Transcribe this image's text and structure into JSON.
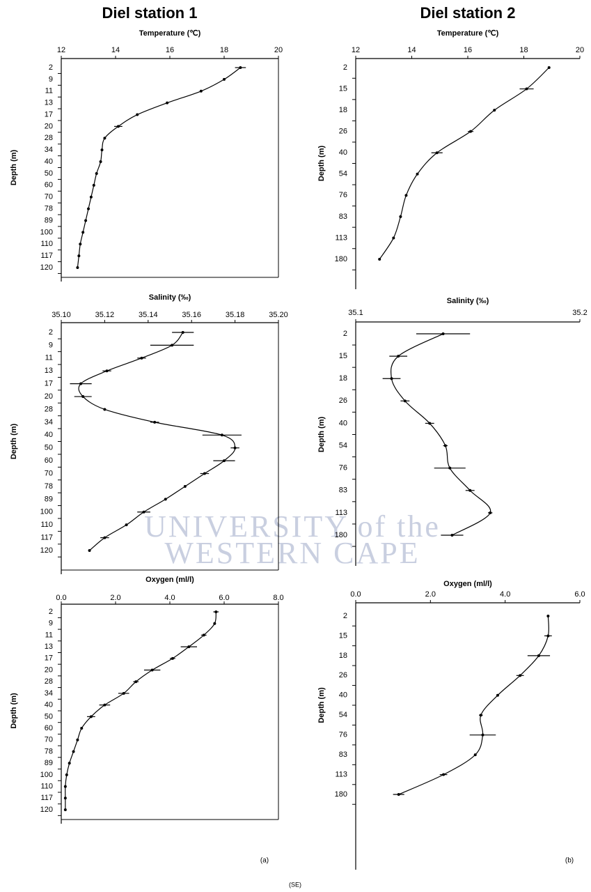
{
  "header": {
    "station_1": "Diel station 1",
    "station_2": "Diel station 2"
  },
  "panel_labels": [
    "(a)",
    "(b)"
  ],
  "note": "(SE)",
  "watermark": [
    "UNIVERSITY of the",
    "WESTERN CAPE"
  ],
  "chart_data": [
    {
      "type": "profile",
      "x_label": "Temperature (℃)",
      "y_label": "Depth (m)",
      "color": "#000000",
      "frame": true,
      "categories": [
        "2",
        "9",
        "11",
        "13",
        "17",
        "20",
        "28",
        "34",
        "40",
        "50",
        "60",
        "70",
        "78",
        "89",
        "100",
        "110",
        "117",
        "120"
      ],
      "values": [
        18.6,
        18.0,
        17.15,
        15.9,
        14.8,
        14.1,
        13.6,
        13.5,
        13.45,
        13.3,
        13.2,
        13.1,
        13.0,
        12.9,
        12.8,
        12.7,
        12.65,
        12.6
      ],
      "errors": [
        0.2,
        null,
        null,
        null,
        null,
        0.15,
        null,
        null,
        null,
        null,
        null,
        null,
        null,
        null,
        null,
        null,
        null,
        null
      ],
      "xlim": [
        12,
        20
      ],
      "xticks": [
        12,
        14,
        16,
        18,
        20
      ]
    },
    {
      "type": "profile",
      "x_label": "Temperature (℃)",
      "y_label": "Depth (m)",
      "color": "#000000",
      "frame": false,
      "categories": [
        "2",
        "15",
        "18",
        "26",
        "40",
        "54",
        "76",
        "83",
        "113",
        "180"
      ],
      "values": [
        18.9,
        18.1,
        16.95,
        16.1,
        14.9,
        14.2,
        13.8,
        13.6,
        13.35,
        12.85
      ],
      "errors": [
        null,
        0.25,
        null,
        0.1,
        0.2,
        null,
        null,
        null,
        null,
        null
      ],
      "xlim": [
        12,
        20
      ],
      "xticks": [
        12,
        14,
        16,
        18,
        20
      ]
    },
    {
      "type": "profile",
      "x_label": "Salinity (‰)",
      "y_label": "Depth (m)",
      "color": "#000000",
      "frame": true,
      "categories": [
        "2",
        "9",
        "11",
        "13",
        "17",
        "20",
        "28",
        "34",
        "40",
        "50",
        "60",
        "70",
        "78",
        "89",
        "100",
        "110",
        "117",
        "120"
      ],
      "values": [
        35.156,
        35.151,
        35.137,
        35.121,
        35.109,
        35.11,
        35.12,
        35.143,
        35.174,
        35.18,
        35.175,
        35.166,
        35.157,
        35.148,
        35.138,
        35.13,
        35.12,
        35.113
      ],
      "errors": [
        0.005,
        0.01,
        0.002,
        0.002,
        0.005,
        0.004,
        null,
        0.002,
        0.009,
        0.002,
        0.005,
        0.002,
        null,
        null,
        0.003,
        null,
        0.002,
        null
      ],
      "xlim": [
        35.1,
        35.2
      ],
      "xticks": [
        {
          "value": 35.1,
          "label": "35.10"
        },
        {
          "value": 35.12,
          "label": "35.12"
        },
        {
          "value": 35.14,
          "label": "35.14"
        },
        {
          "value": 35.16,
          "label": "35.16"
        },
        {
          "value": 35.18,
          "label": "35.18"
        },
        {
          "value": 35.2,
          "label": "35.20"
        }
      ]
    },
    {
      "type": "profile",
      "x_label": "Salinity (‰)",
      "y_label": "Depth (m)",
      "color": "#000000",
      "frame": false,
      "categories": [
        "2",
        "15",
        "18",
        "26",
        "40",
        "54",
        "76",
        "83",
        "113",
        "180"
      ],
      "values": [
        35.139,
        35.119,
        35.116,
        35.122,
        35.133,
        35.14,
        35.142,
        35.151,
        35.16,
        35.143
      ],
      "errors": [
        0.012,
        0.004,
        0.004,
        0.002,
        0.002,
        0.001,
        0.007,
        0.002,
        0.001,
        0.005
      ],
      "xlim": [
        35.1,
        35.2
      ],
      "xticks": [
        35.1,
        35.2
      ]
    },
    {
      "type": "profile",
      "x_label": "Oxygen (ml/l)",
      "y_label": "Depth (m)",
      "color": "#000000",
      "frame": true,
      "categories": [
        "2",
        "9",
        "11",
        "13",
        "17",
        "20",
        "28",
        "34",
        "40",
        "50",
        "60",
        "70",
        "78",
        "89",
        "100",
        "110",
        "117",
        "120"
      ],
      "values": [
        5.7,
        5.65,
        5.25,
        4.7,
        4.1,
        3.35,
        2.75,
        2.3,
        1.6,
        1.1,
        0.75,
        0.6,
        0.45,
        0.3,
        0.2,
        0.15,
        0.15,
        0.15
      ],
      "errors": [
        0.1,
        null,
        0.1,
        0.3,
        0.1,
        0.3,
        0.1,
        0.2,
        0.2,
        0.15,
        null,
        null,
        null,
        null,
        null,
        null,
        null,
        null
      ],
      "xlim": [
        0,
        8
      ],
      "xticks": [
        {
          "value": 0,
          "label": "0.0"
        },
        {
          "value": 2,
          "label": "2.0"
        },
        {
          "value": 4,
          "label": "4.0"
        },
        {
          "value": 6,
          "label": "6.0"
        },
        {
          "value": 8,
          "label": "8.0"
        }
      ]
    },
    {
      "type": "profile",
      "x_label": "Oxygen (ml/l)",
      "y_label": "Depth (m)",
      "color": "#000000",
      "frame": false,
      "categories": [
        "2",
        "15",
        "18",
        "26",
        "40",
        "54",
        "76",
        "83",
        "113",
        "180"
      ],
      "values": [
        5.15,
        5.15,
        4.9,
        4.4,
        3.8,
        3.35,
        3.4,
        3.2,
        2.35,
        1.15
      ],
      "errors": [
        null,
        0.1,
        0.3,
        0.1,
        null,
        0.05,
        0.35,
        null,
        0.1,
        0.15
      ],
      "xlim": [
        0,
        6
      ],
      "xticks": [
        {
          "value": 0,
          "label": "0.0"
        },
        {
          "value": 2,
          "label": "2.0"
        },
        {
          "value": 4,
          "label": "4.0"
        },
        {
          "value": 6,
          "label": "6.0"
        }
      ]
    }
  ]
}
